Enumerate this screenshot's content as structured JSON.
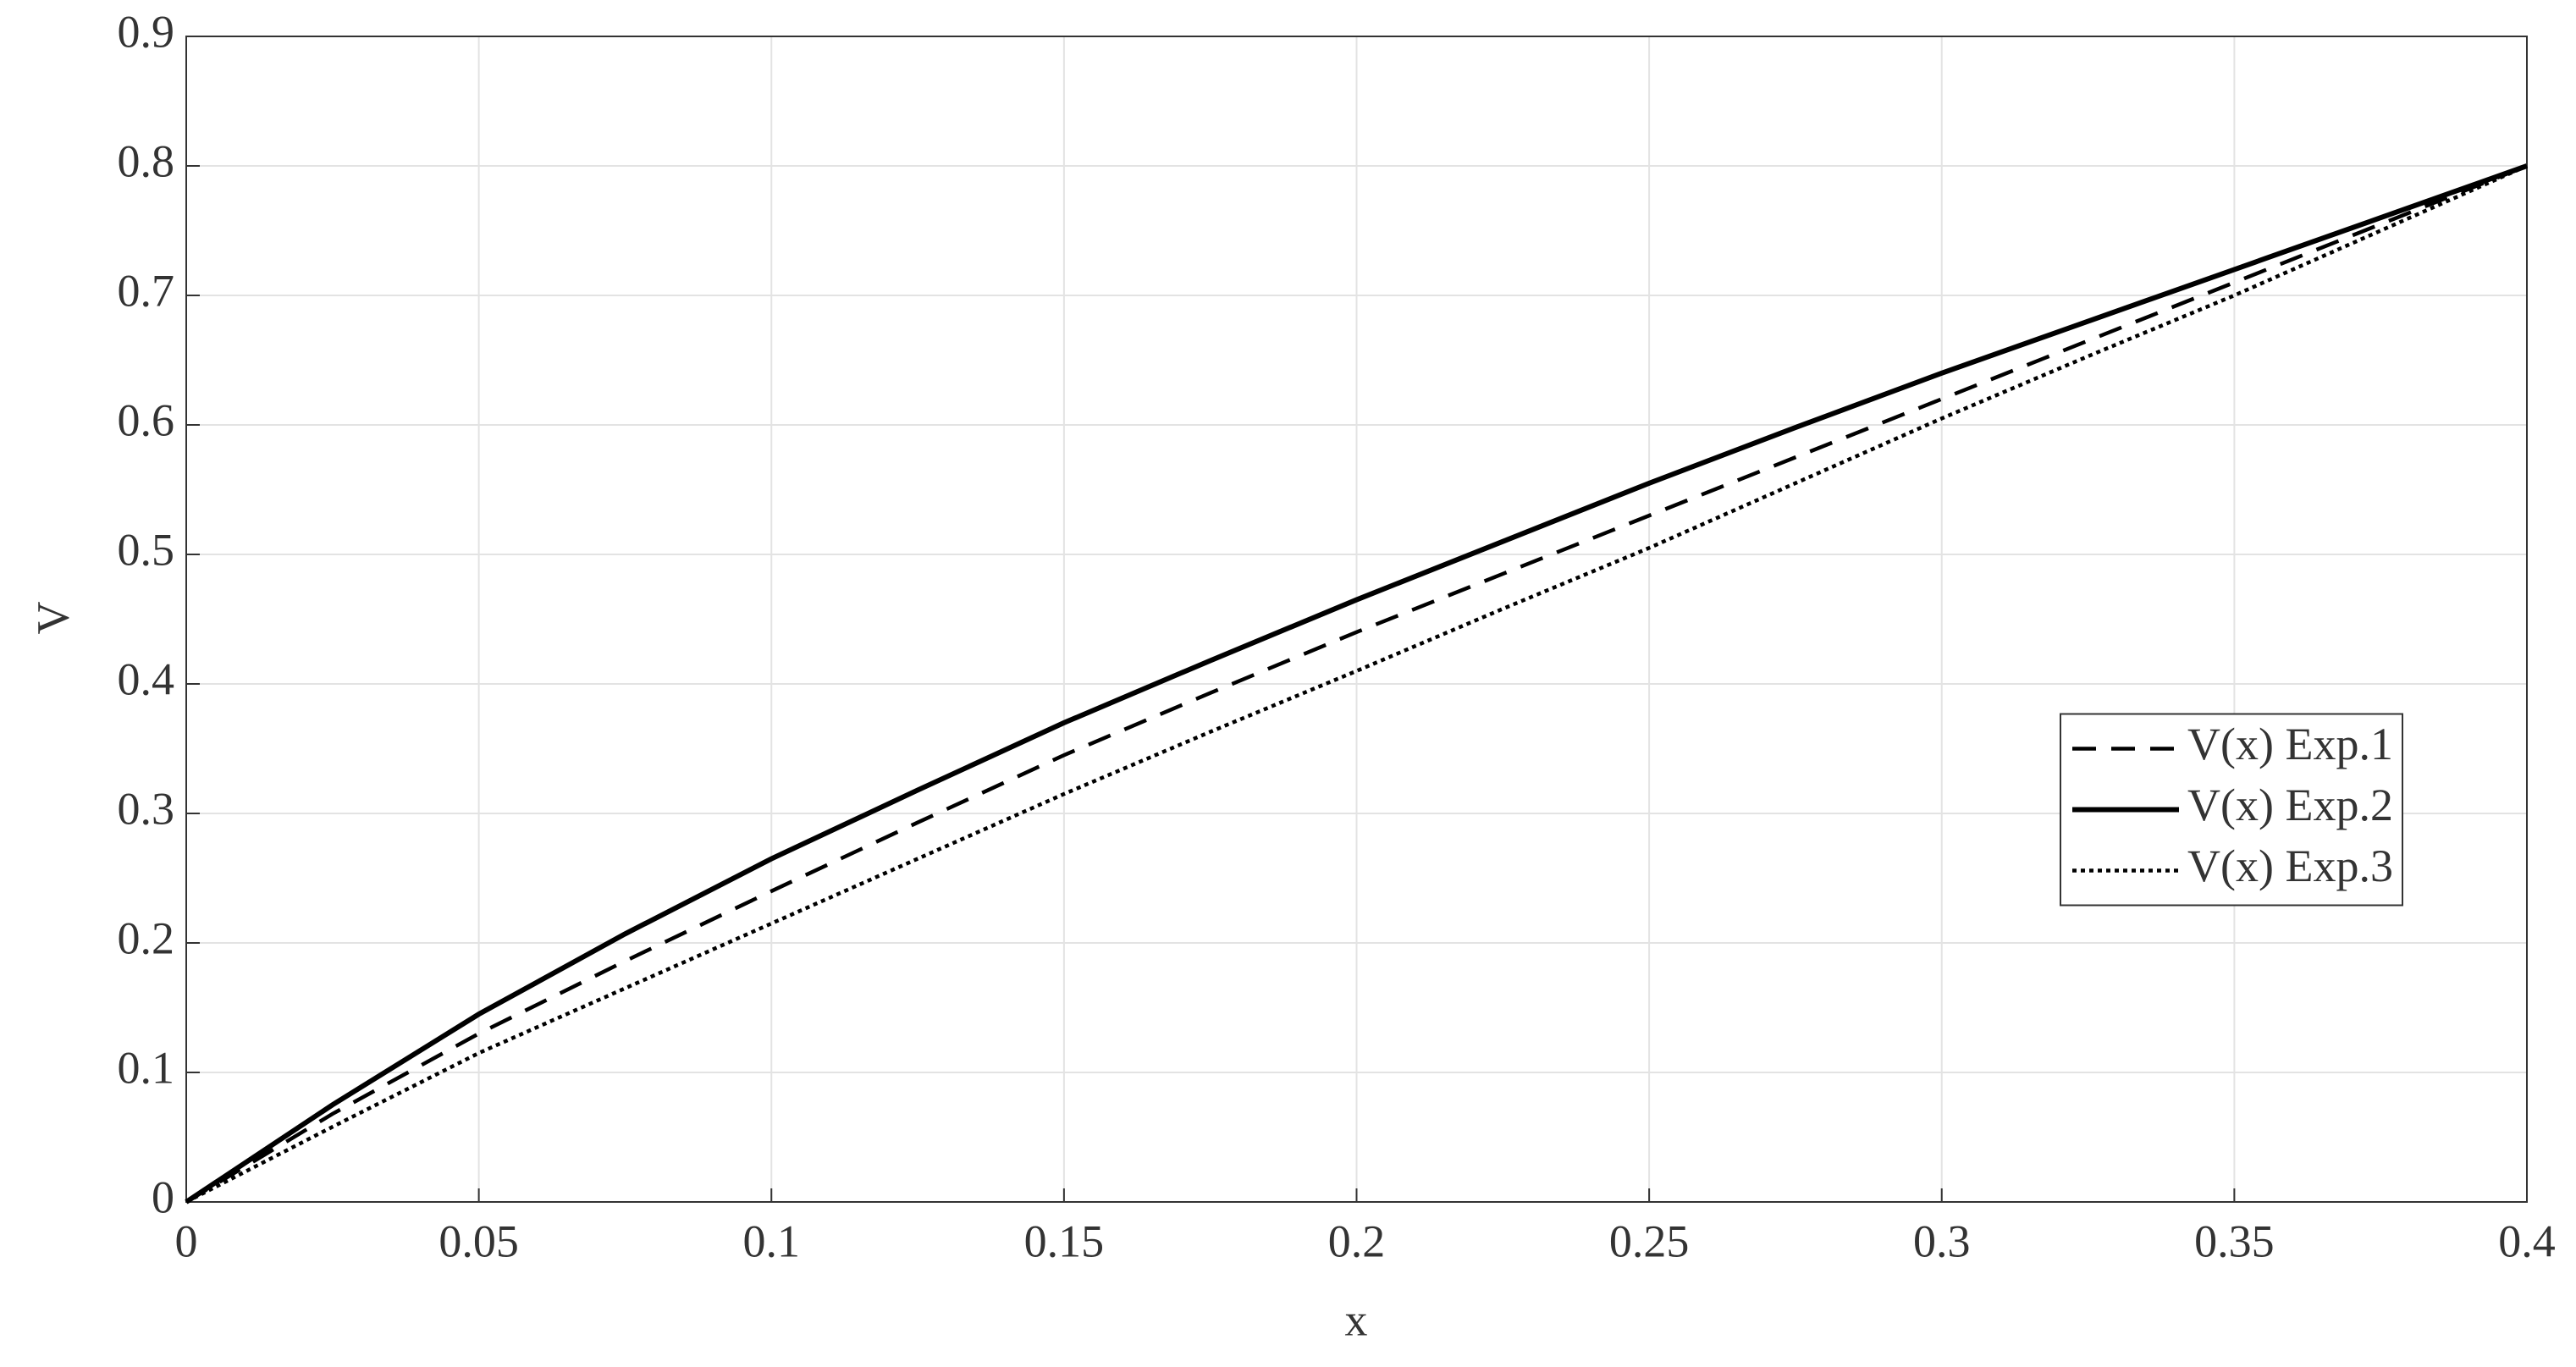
{
  "chart_data": {
    "type": "line",
    "x_label": "x",
    "y_label": "V",
    "x": [
      0,
      0.025,
      0.05,
      0.075,
      0.1,
      0.125,
      0.15,
      0.175,
      0.2,
      0.225,
      0.25,
      0.275,
      0.3,
      0.325,
      0.35,
      0.375,
      0.4
    ],
    "series": [
      {
        "name": "V(x) Exp.1",
        "color": "#000000",
        "dash": "dashed",
        "values": [
          0,
          0.068,
          0.13,
          0.186,
          0.24,
          0.293,
          0.345,
          0.393,
          0.44,
          0.485,
          0.53,
          0.575,
          0.62,
          0.665,
          0.71,
          0.755,
          0.8
        ]
      },
      {
        "name": "V(x) Exp.2",
        "color": "#000000",
        "dash": "solid",
        "values": [
          0,
          0.075,
          0.145,
          0.207,
          0.265,
          0.318,
          0.37,
          0.418,
          0.465,
          0.51,
          0.555,
          0.598,
          0.64,
          0.68,
          0.72,
          0.76,
          0.8
        ]
      },
      {
        "name": "V(x) Exp.3",
        "color": "#000000",
        "dash": "dotted",
        "values": [
          0,
          0.058,
          0.115,
          0.165,
          0.215,
          0.265,
          0.315,
          0.363,
          0.41,
          0.458,
          0.505,
          0.555,
          0.605,
          0.653,
          0.7,
          0.75,
          0.8
        ]
      }
    ],
    "xlim": [
      0,
      0.4
    ],
    "xticks": [
      0,
      0.05,
      0.1,
      0.15,
      0.2,
      0.25,
      0.3,
      0.35,
      0.4
    ],
    "ylim": [
      0,
      0.9
    ],
    "yticks": [
      0,
      0.1,
      0.2,
      0.3,
      0.4,
      0.5,
      0.6,
      0.7,
      0.8,
      0.9
    ],
    "grid": true,
    "legend": "east"
  }
}
